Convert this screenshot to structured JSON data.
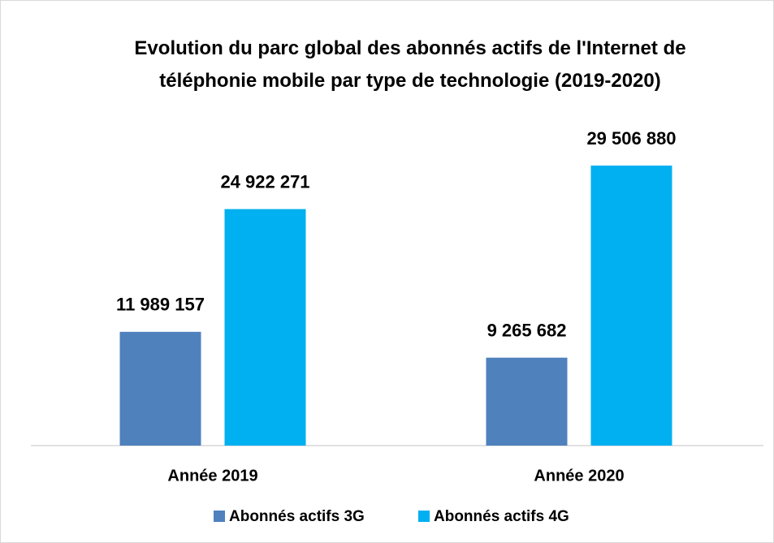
{
  "chart_data": {
    "type": "bar",
    "title": "Evolution du parc global des abonnés actifs de l'Internet de téléphonie mobile par type de technologie (2019-2020)",
    "categories": [
      "Année 2019",
      "Année 2020"
    ],
    "series": [
      {
        "name": "Abonnés actifs 3G",
        "color": "#4f81bd",
        "values": [
          11989157,
          9265682
        ],
        "value_labels": [
          "11 989 157",
          "9 265 682"
        ]
      },
      {
        "name": "Abonnés actifs 4G",
        "color": "#00b0f0",
        "values": [
          24922271,
          29506880
        ],
        "value_labels": [
          "24 922 271",
          "29 506 880"
        ]
      }
    ],
    "legend": "bottom"
  }
}
